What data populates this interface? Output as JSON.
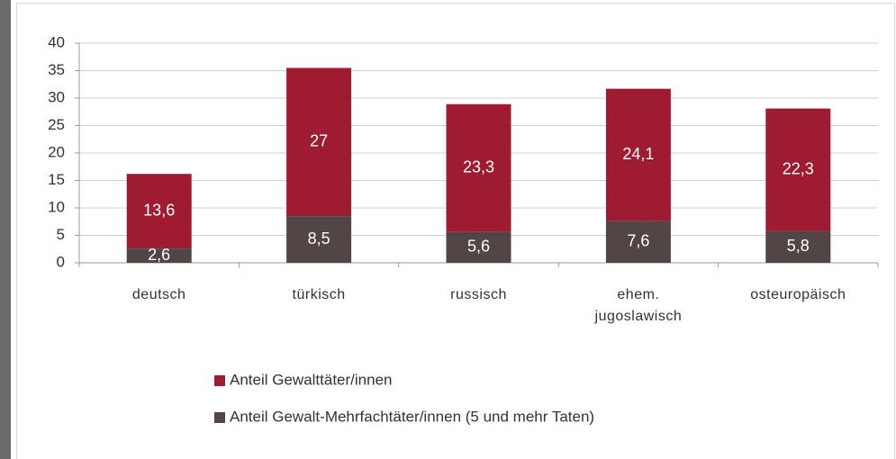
{
  "chart_data": {
    "type": "stacked_bar",
    "categories": [
      "deutsch",
      "türkisch",
      "russisch",
      "ehem. jugoslawisch",
      "osteuropäisch"
    ],
    "series": [
      {
        "name": "Anteil Gewalt-Mehrfachtäter/innen (5 und mehr Taten)",
        "color": "#514546",
        "values": [
          2.6,
          8.5,
          5.6,
          7.6,
          5.8
        ],
        "value_labels": [
          "2,6",
          "8,5",
          "5,6",
          "7,6",
          "5,8"
        ]
      },
      {
        "name": "Anteil Gewalttäter/innen",
        "color": "#9e1b32",
        "values": [
          13.6,
          27,
          23.3,
          24.1,
          22.3
        ],
        "value_labels": [
          "13,6",
          "27",
          "23,3",
          "24,1",
          "22,3"
        ]
      }
    ],
    "ylim": [
      0,
      40
    ],
    "yticks": [
      0,
      5,
      10,
      15,
      20,
      25,
      30,
      35,
      40
    ],
    "grid": true
  }
}
